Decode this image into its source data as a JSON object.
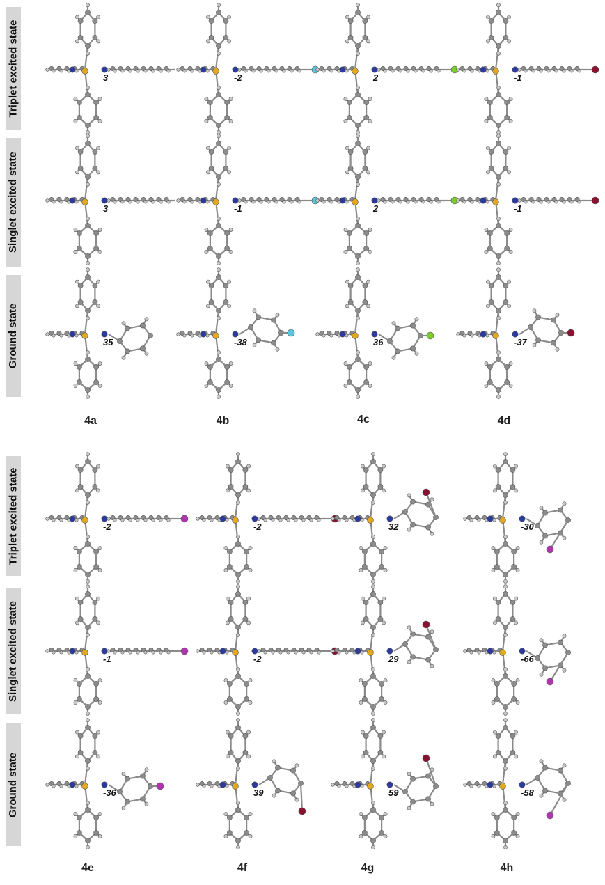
{
  "colors": {
    "carbon": "#8c8c8c",
    "hydrogen": "#c8c8c8",
    "nitrogen": "#2b3a9e",
    "boron": "#e3a81c",
    "fluorine": "#5bc6dc",
    "chlorine": "#7ccc2c",
    "bromine": "#8a1230",
    "iodine": "#b034b0",
    "label_band": "#d6d6d6"
  },
  "row_labels": [
    "Triplet  excited state",
    "Singlet  excited state",
    "Ground state"
  ],
  "panels": [
    {
      "compounds": [
        {
          "id": "4a",
          "halogen": "none",
          "angles": {
            "triplet": "3",
            "singlet": "3",
            "ground": "35"
          }
        },
        {
          "id": "4b",
          "halogen": "fluorine",
          "angles": {
            "triplet": "-2",
            "singlet": "-1",
            "ground": "-38"
          }
        },
        {
          "id": "4c",
          "halogen": "chlorine",
          "angles": {
            "triplet": "2",
            "singlet": "2",
            "ground": "36"
          }
        },
        {
          "id": "4d",
          "halogen": "bromine",
          "angles": {
            "triplet": "-1",
            "singlet": "-1",
            "ground": "-37"
          }
        }
      ]
    },
    {
      "compounds": [
        {
          "id": "4e",
          "halogen": "iodine",
          "angles": {
            "triplet": "-2",
            "singlet": "-1",
            "ground": "-36"
          }
        },
        {
          "id": "4f",
          "halogen": "bromine",
          "angles": {
            "triplet": "-2",
            "singlet": "-2",
            "ground": "39"
          }
        },
        {
          "id": "4g",
          "halogen": "bromine",
          "angles": {
            "triplet": "32",
            "singlet": "29",
            "ground": "59"
          }
        },
        {
          "id": "4h",
          "halogen": "iodine",
          "angles": {
            "triplet": "-30",
            "singlet": "-66",
            "ground": "-58"
          }
        }
      ]
    }
  ]
}
